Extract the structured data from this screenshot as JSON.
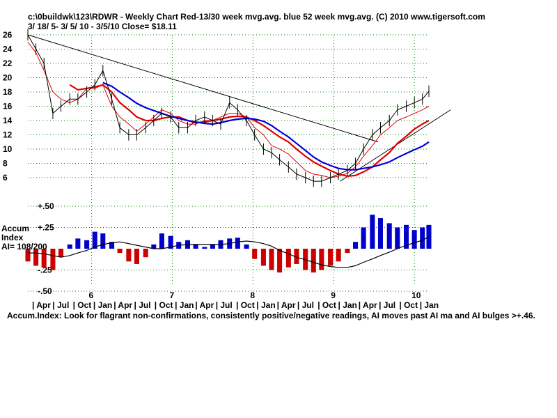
{
  "header": {
    "line1": "c:\\0buildwk\\123\\RDWR   - Weekly Chart  Red-13/30 week mvg.avg.  blue 52 week mvg.avg.  (C) 2010 www.tigersoft.com",
    "line2": " 3/ 18/ 5- 3/ 5/ 10 - 3/5/10    Close= $18.11"
  },
  "accum_label": {
    "line1": "Accum",
    "line2": "Index",
    "line3": "AI= 108/200"
  },
  "footer": "Accum.Index: Look for flagrant non-confirmations, consistently positive/negative readings, AI moves past AI ma and AI bulges >+.46.",
  "colors": {
    "ma_red": "#e00000",
    "ma_blue": "#0000dd",
    "positive_bar": "#0000cc",
    "negative_bar": "#cc0000",
    "grid": "#008000",
    "price": "#000000"
  },
  "chart_data": [
    {
      "type": "line",
      "title": "RDWR Weekly Chart",
      "ylim": [
        5,
        26
      ],
      "y_ticks": [
        "26",
        "24",
        "22",
        "20",
        "18",
        "16",
        "14",
        "12",
        "10",
        "8",
        "6"
      ],
      "x_months": [
        "Apr",
        "Jul",
        "Oct",
        "Jan",
        "Apr",
        "Jul",
        "Oct",
        "Jan",
        "Apr",
        "Jul",
        "Oct",
        "Jan",
        "Apr",
        "Jul",
        "Oct",
        "Jan",
        "Apr",
        "Jul",
        "Oct",
        "Jan"
      ],
      "x_years": [
        "6",
        "7",
        "8",
        "9",
        "10"
      ],
      "x": [
        2005.21,
        2005.31,
        2005.41,
        2005.52,
        2005.62,
        2005.73,
        2005.83,
        2005.94,
        2006.04,
        2006.14,
        2006.25,
        2006.35,
        2006.46,
        2006.56,
        2006.67,
        2006.77,
        2006.87,
        2006.98,
        2007.08,
        2007.19,
        2007.29,
        2007.4,
        2007.5,
        2007.6,
        2007.71,
        2007.81,
        2007.92,
        2008.02,
        2008.13,
        2008.23,
        2008.33,
        2008.44,
        2008.54,
        2008.65,
        2008.75,
        2008.85,
        2008.96,
        2009.06,
        2009.17,
        2009.27,
        2009.37,
        2009.48,
        2009.58,
        2009.69,
        2009.79,
        2009.9,
        2010.0,
        2010.1,
        2010.18
      ],
      "series": [
        {
          "name": "Red-13",
          "color": "#e00000",
          "values": [
            25,
            23.5,
            21,
            18,
            17,
            16.5,
            17,
            18.5,
            18.5,
            19,
            16,
            14.5,
            13.5,
            12.5,
            13.5,
            14.5,
            15.5,
            15,
            14,
            13.5,
            13.5,
            14,
            14,
            14.5,
            15,
            15,
            14.5,
            13,
            12,
            10.5,
            10,
            9.3,
            8.2,
            7,
            6.5,
            6.3,
            6,
            6.2,
            6.6,
            7.5,
            9,
            10.5,
            12,
            13,
            14,
            14.5,
            15,
            15.5,
            16
          ]
        },
        {
          "name": "Red-30",
          "color": "#e00000",
          "values": [
            null,
            null,
            null,
            null,
            null,
            19,
            18.3,
            18.5,
            18.7,
            19,
            18,
            16.5,
            15.5,
            14.5,
            14,
            14,
            14.3,
            14.5,
            14.5,
            14,
            13.7,
            13.8,
            14,
            14.2,
            14.5,
            14.6,
            14.5,
            14,
            13.3,
            12.5,
            11.7,
            11,
            10,
            9,
            8.2,
            7.6,
            7,
            6.5,
            6.2,
            6.3,
            6.8,
            7.5,
            8.5,
            9.5,
            10.8,
            11.8,
            12.8,
            13.5,
            14
          ]
        },
        {
          "name": "blue 52",
          "color": "#0000dd",
          "values": [
            null,
            null,
            null,
            null,
            null,
            null,
            null,
            null,
            null,
            19.3,
            18.8,
            18,
            17.2,
            16.4,
            15.8,
            15.4,
            15,
            14.6,
            14.3,
            14,
            13.8,
            13.6,
            13.5,
            13.7,
            14,
            14.2,
            14.3,
            14.2,
            13.9,
            13.3,
            12.5,
            11.7,
            10.8,
            9.8,
            8.9,
            8.2,
            7.7,
            7.3,
            7.1,
            7.1,
            7.3,
            7.5,
            7.8,
            8.2,
            8.8,
            9.4,
            9.9,
            10.4,
            11
          ]
        },
        {
          "name": "price",
          "color": "#000000",
          "values": [
            26,
            24,
            22,
            15,
            16,
            17,
            17,
            18,
            19,
            21,
            17,
            13,
            12,
            12,
            13,
            14,
            15,
            14.5,
            13,
            13,
            14,
            14.5,
            14,
            13.5,
            16.5,
            15.5,
            14,
            12,
            10,
            9.5,
            8.5,
            7.5,
            6.5,
            6,
            5.5,
            5.5,
            6,
            6.5,
            7,
            8,
            10,
            12,
            13,
            14,
            15.5,
            16,
            16.5,
            17,
            18.11
          ]
        }
      ],
      "trendlines": [
        {
          "from": [
            2005.21,
            26
          ],
          "to": [
            2009.55,
            11
          ]
        },
        {
          "from": [
            2009.08,
            5.5
          ],
          "to": [
            2010.45,
            15.5
          ]
        }
      ]
    },
    {
      "type": "bar",
      "title": "Accumulation Index",
      "ylim": [
        -0.5,
        0.5
      ],
      "y_ticks": [
        "+.50",
        "+.25",
        "-.25",
        "-.50"
      ],
      "x": [
        2005.21,
        2005.31,
        2005.41,
        2005.52,
        2005.62,
        2005.73,
        2005.83,
        2005.94,
        2006.04,
        2006.14,
        2006.25,
        2006.35,
        2006.46,
        2006.56,
        2006.67,
        2006.77,
        2006.87,
        2006.98,
        2007.08,
        2007.19,
        2007.29,
        2007.4,
        2007.5,
        2007.6,
        2007.71,
        2007.81,
        2007.92,
        2008.02,
        2008.13,
        2008.23,
        2008.33,
        2008.44,
        2008.54,
        2008.65,
        2008.75,
        2008.85,
        2008.96,
        2009.06,
        2009.17,
        2009.27,
        2009.37,
        2009.48,
        2009.58,
        2009.69,
        2009.79,
        2009.9,
        2010.0,
        2010.1,
        2010.18
      ],
      "values": [
        -0.15,
        -0.2,
        -0.22,
        -0.25,
        -0.1,
        0.05,
        0.12,
        0.1,
        0.2,
        0.18,
        0.08,
        -0.05,
        -0.15,
        -0.18,
        -0.1,
        0.05,
        0.18,
        0.15,
        0.08,
        0.1,
        0.05,
        0.02,
        0.05,
        0.1,
        0.12,
        0.13,
        0.05,
        -0.12,
        -0.2,
        -0.25,
        -0.28,
        -0.22,
        -0.18,
        -0.25,
        -0.28,
        -0.25,
        -0.2,
        -0.15,
        -0.05,
        0.08,
        0.25,
        0.4,
        0.36,
        0.3,
        0.25,
        0.28,
        0.22,
        0.25,
        0.28
      ],
      "ma_values": [
        -0.05,
        -0.05,
        -0.06,
        -0.08,
        -0.1,
        -0.08,
        -0.05,
        -0.02,
        0.02,
        0.05,
        0.07,
        0.08,
        0.06,
        0.04,
        0.02,
        0.0,
        0.0,
        0.02,
        0.04,
        0.05,
        0.05,
        0.05,
        0.05,
        0.05,
        0.06,
        0.08,
        0.09,
        0.08,
        0.06,
        0.03,
        -0.02,
        -0.06,
        -0.1,
        -0.13,
        -0.16,
        -0.19,
        -0.21,
        -0.22,
        -0.22,
        -0.2,
        -0.16,
        -0.12,
        -0.08,
        -0.04,
        0.0,
        0.04,
        0.07,
        0.1,
        0.14
      ]
    }
  ]
}
